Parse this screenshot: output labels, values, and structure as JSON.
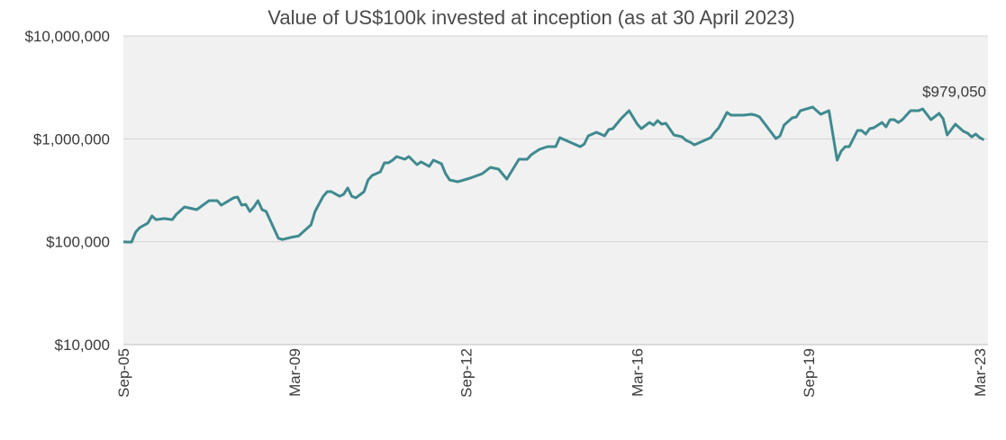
{
  "chart_data": {
    "type": "line",
    "title": "Value of US$100k invested at inception (as at 30 April 2023)",
    "xlabel": "",
    "ylabel": "",
    "y_scale": "log",
    "ylim": [
      10000,
      10000000
    ],
    "y_ticks": [
      {
        "value": 10000,
        "label": "$10,000"
      },
      {
        "value": 100000,
        "label": "$100,000"
      },
      {
        "value": 1000000,
        "label": "$1,000,000"
      },
      {
        "value": 10000000,
        "label": "$10,000,000"
      }
    ],
    "x_unit": "months since Sep-05",
    "xlim": [
      0,
      212
    ],
    "x_ticks": [
      {
        "value": 0,
        "label": "Sep-05"
      },
      {
        "value": 42,
        "label": "Mar-09"
      },
      {
        "value": 84,
        "label": "Sep-12"
      },
      {
        "value": 126,
        "label": "Mar-16"
      },
      {
        "value": 168,
        "label": "Sep-19"
      },
      {
        "value": 210,
        "label": "Mar-23"
      }
    ],
    "grid": true,
    "line_color": "#3f8a8f",
    "annotation": {
      "label": "$979,050",
      "x": 211,
      "value": 979050
    },
    "series": [
      {
        "name": "Value of US$100k",
        "points": [
          [
            0,
            100000
          ],
          [
            1,
            99300
          ],
          [
            2,
            99300
          ],
          [
            3,
            124000
          ],
          [
            4,
            137000
          ],
          [
            6,
            152000
          ],
          [
            7,
            178000
          ],
          [
            8,
            164000
          ],
          [
            10,
            168000
          ],
          [
            12,
            164000
          ],
          [
            13,
            185000
          ],
          [
            15,
            218000
          ],
          [
            18,
            205000
          ],
          [
            21,
            251000
          ],
          [
            23,
            251000
          ],
          [
            24,
            227000
          ],
          [
            27,
            267000
          ],
          [
            28,
            272000
          ],
          [
            29,
            227000
          ],
          [
            30,
            231000
          ],
          [
            31,
            197000
          ],
          [
            32,
            218000
          ],
          [
            33,
            251000
          ],
          [
            34,
            205000
          ],
          [
            35,
            197000
          ],
          [
            38,
            108000
          ],
          [
            39,
            105000
          ],
          [
            41,
            110000
          ],
          [
            43,
            114000
          ],
          [
            44,
            124000
          ],
          [
            46,
            146000
          ],
          [
            47,
            197000
          ],
          [
            49,
            277000
          ],
          [
            50,
            307000
          ],
          [
            51,
            307000
          ],
          [
            53,
            277000
          ],
          [
            54,
            289000
          ],
          [
            55,
            333000
          ],
          [
            56,
            277000
          ],
          [
            57,
            267000
          ],
          [
            59,
            307000
          ],
          [
            60,
            399000
          ],
          [
            61,
            441000
          ],
          [
            63,
            478000
          ],
          [
            64,
            585000
          ],
          [
            65,
            585000
          ],
          [
            66,
            621000
          ],
          [
            67,
            673000
          ],
          [
            69,
            634000
          ],
          [
            70,
            673000
          ],
          [
            72,
            561000
          ],
          [
            73,
            597000
          ],
          [
            75,
            540000
          ],
          [
            76,
            621000
          ],
          [
            78,
            573000
          ],
          [
            79,
            459000
          ],
          [
            80,
            399000
          ],
          [
            82,
            383000
          ],
          [
            85,
            415000
          ],
          [
            88,
            459000
          ],
          [
            90,
            528000
          ],
          [
            92,
            508000
          ],
          [
            94,
            406000
          ],
          [
            97,
            634000
          ],
          [
            99,
            634000
          ],
          [
            100,
            700000
          ],
          [
            102,
            791000
          ],
          [
            104,
            839000
          ],
          [
            106,
            839000
          ],
          [
            107,
            1028000
          ],
          [
            110,
            910000
          ],
          [
            112,
            839000
          ],
          [
            113,
            891000
          ],
          [
            114,
            1069000
          ],
          [
            116,
            1159000
          ],
          [
            118,
            1069000
          ],
          [
            119,
            1231000
          ],
          [
            120,
            1256000
          ],
          [
            122,
            1567000
          ],
          [
            124,
            1879000
          ],
          [
            126,
            1390000
          ],
          [
            127,
            1256000
          ],
          [
            129,
            1445000
          ],
          [
            130,
            1362000
          ],
          [
            131,
            1507000
          ],
          [
            132,
            1390000
          ],
          [
            133,
            1419000
          ],
          [
            135,
            1091000
          ],
          [
            137,
            1047000
          ],
          [
            138,
            966000
          ],
          [
            139,
            929000
          ],
          [
            140,
            875000
          ],
          [
            142,
            948000
          ],
          [
            144,
            1028000
          ],
          [
            145,
            1159000
          ],
          [
            146,
            1282000
          ],
          [
            148,
            1807000
          ],
          [
            149,
            1698000
          ],
          [
            152,
            1698000
          ],
          [
            154,
            1734000
          ],
          [
            155,
            1698000
          ],
          [
            156,
            1633000
          ],
          [
            158,
            1282000
          ],
          [
            160,
            1007000
          ],
          [
            161,
            1069000
          ],
          [
            162,
            1362000
          ],
          [
            164,
            1600000
          ],
          [
            165,
            1633000
          ],
          [
            166,
            1879000
          ],
          [
            169,
            2037000
          ],
          [
            171,
            1734000
          ],
          [
            173,
            1879000
          ],
          [
            175,
            621000
          ],
          [
            176,
            759000
          ],
          [
            177,
            839000
          ],
          [
            178,
            839000
          ],
          [
            180,
            1208000
          ],
          [
            181,
            1208000
          ],
          [
            182,
            1114000
          ],
          [
            183,
            1256000
          ],
          [
            184,
            1282000
          ],
          [
            186,
            1445000
          ],
          [
            187,
            1309000
          ],
          [
            188,
            1538000
          ],
          [
            189,
            1538000
          ],
          [
            190,
            1445000
          ],
          [
            191,
            1538000
          ],
          [
            193,
            1879000
          ],
          [
            195,
            1879000
          ],
          [
            196,
            1958000
          ],
          [
            198,
            1538000
          ],
          [
            200,
            1770000
          ],
          [
            201,
            1567000
          ],
          [
            202,
            1091000
          ],
          [
            204,
            1390000
          ],
          [
            206,
            1183000
          ],
          [
            207,
            1135000
          ],
          [
            208,
            1047000
          ],
          [
            209,
            1114000
          ],
          [
            210,
            1028000
          ],
          [
            211,
            979050
          ]
        ]
      }
    ]
  }
}
